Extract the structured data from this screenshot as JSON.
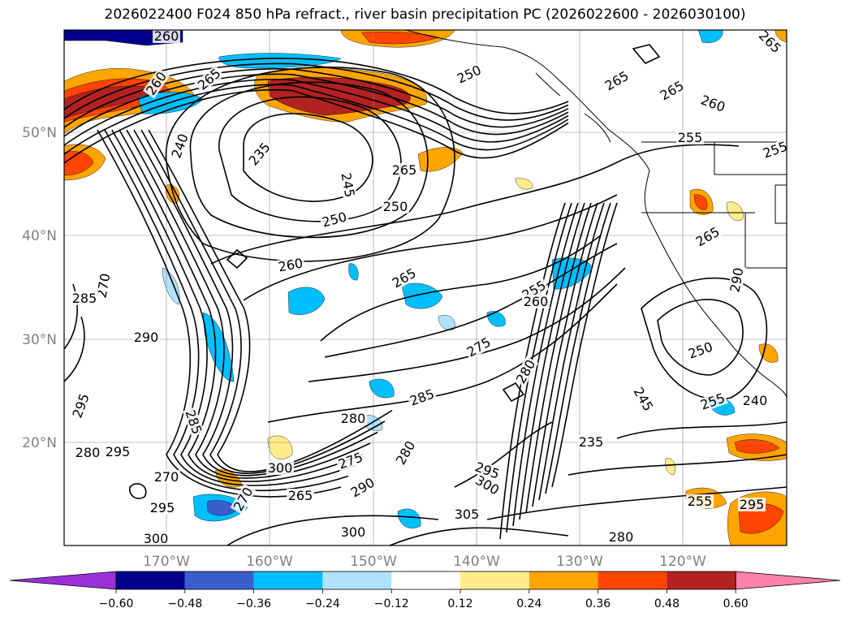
{
  "title": "2026022400 F024 850 hPa refract., river basin precipitation PC (2026022600 - 2026030100)",
  "lat_labels": [
    "50°N",
    "40°N",
    "30°N",
    "20°N"
  ],
  "lon_labels": [
    "170°W",
    "160°W",
    "150°W",
    "140°W",
    "130°W",
    "120°W"
  ],
  "colorbar": {
    "ticks": [
      "−0.60",
      "−0.48",
      "−0.36",
      "−0.24",
      "−0.12",
      "0.12",
      "0.24",
      "0.36",
      "0.48",
      "0.60"
    ],
    "colors": [
      "#9b30d9",
      "#00008b",
      "#3a5fcd",
      "#00bfff",
      "#b0e2ff",
      "#ffffff",
      "#ffec8b",
      "#ffa500",
      "#ff4500",
      "#b22222",
      "#ff82ab"
    ]
  },
  "contour_labels": [
    {
      "text": "260"
    },
    {
      "text": "265"
    },
    {
      "text": "260"
    },
    {
      "text": "250"
    },
    {
      "text": "265"
    },
    {
      "text": "265"
    },
    {
      "text": "260"
    },
    {
      "text": "255"
    },
    {
      "text": "255"
    },
    {
      "text": "265"
    },
    {
      "text": "240"
    },
    {
      "text": "235"
    },
    {
      "text": "245"
    },
    {
      "text": "265"
    },
    {
      "text": "250"
    },
    {
      "text": "250"
    },
    {
      "text": "260"
    },
    {
      "text": "265"
    },
    {
      "text": "255"
    },
    {
      "text": "260"
    },
    {
      "text": "270"
    },
    {
      "text": "285"
    },
    {
      "text": "265"
    },
    {
      "text": "290"
    },
    {
      "text": "290"
    },
    {
      "text": "275"
    },
    {
      "text": "280"
    },
    {
      "text": "285"
    },
    {
      "text": "280"
    },
    {
      "text": "250"
    },
    {
      "text": "255"
    },
    {
      "text": "240"
    },
    {
      "text": "245"
    },
    {
      "text": "295"
    },
    {
      "text": "285"
    },
    {
      "text": "295"
    },
    {
      "text": "270"
    },
    {
      "text": "280"
    },
    {
      "text": "275"
    },
    {
      "text": "280"
    },
    {
      "text": "265"
    },
    {
      "text": "290"
    },
    {
      "text": "295"
    },
    {
      "text": "235"
    },
    {
      "text": "295"
    },
    {
      "text": "300"
    },
    {
      "text": "305"
    },
    {
      "text": "300"
    },
    {
      "text": "300"
    },
    {
      "text": "295"
    },
    {
      "text": "280"
    },
    {
      "text": "300"
    },
    {
      "text": "270"
    },
    {
      "text": "255"
    }
  ]
}
